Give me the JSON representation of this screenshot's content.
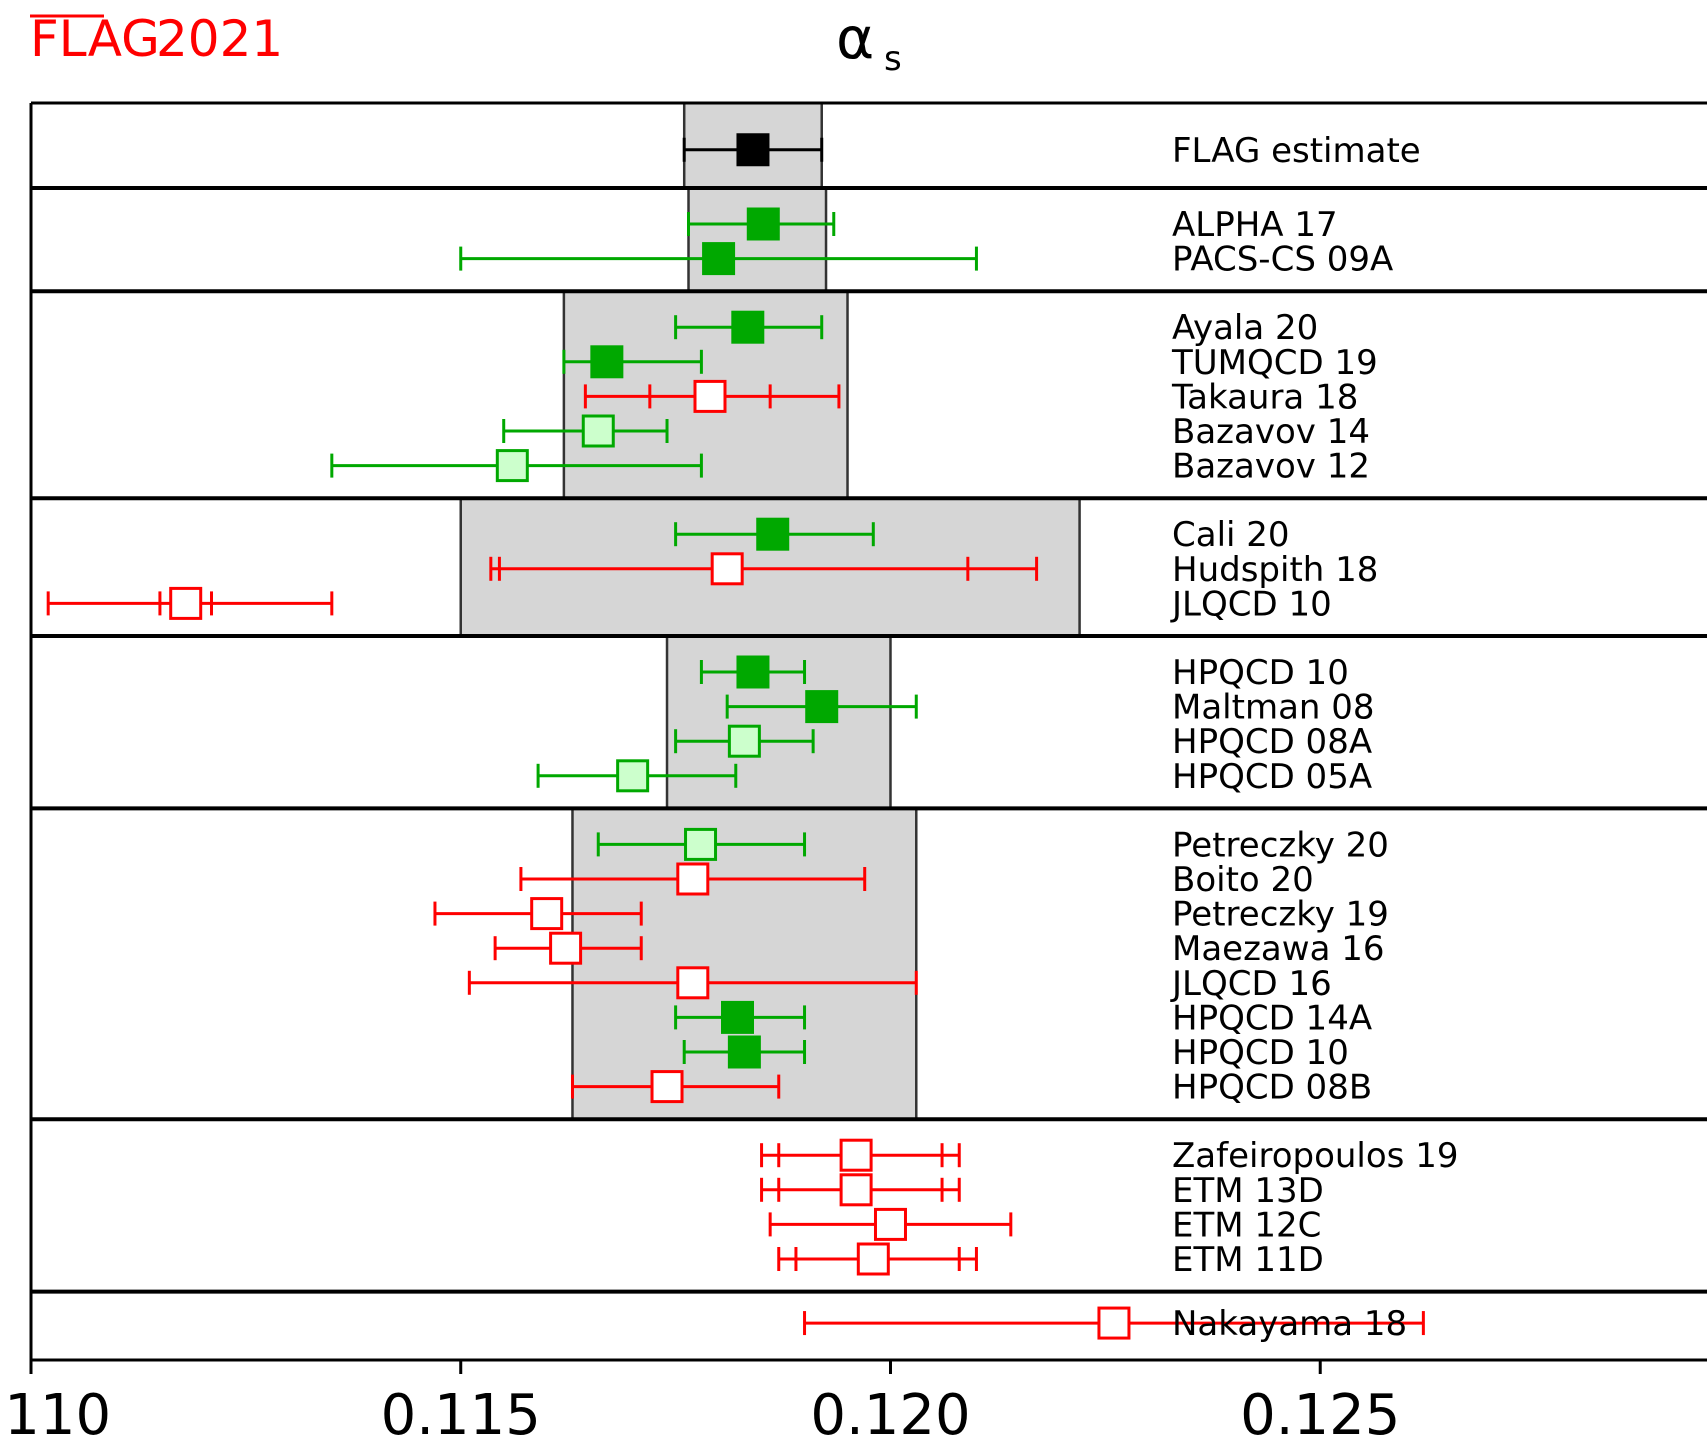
{
  "brand": {
    "name": "FLAG",
    "year": "2021",
    "color": "#ff0000"
  },
  "chart_data": {
    "type": "scatter",
    "title": "α",
    "title_subscript": "s",
    "xlim": [
      0.11,
      0.1295
    ],
    "xticks": [
      {
        "value": 0.11,
        "label": "0.110"
      },
      {
        "value": 0.115,
        "label": "0.115"
      },
      {
        "value": 0.12,
        "label": "0.120"
      },
      {
        "value": 0.125,
        "label": "0.125"
      }
    ],
    "colors": {
      "green": "#00a800",
      "red": "#ff0000",
      "light_green": "#ccffcc",
      "black": "#000000",
      "band": "#d6d6d6"
    },
    "groups": [
      {
        "band": [
          0.1176,
          0.1192
        ],
        "points": [
          {
            "label": "FLAG estimate",
            "value": 0.1184,
            "err": [
              0.1176,
              0.1192
            ],
            "color": "black",
            "marker": "filled"
          }
        ]
      },
      {
        "band": [
          0.11765,
          0.11925
        ],
        "points": [
          {
            "label": "ALPHA 17",
            "value": 0.11852,
            "err": [
              0.11765,
              0.11934
            ],
            "color": "green",
            "marker": "filled"
          },
          {
            "label": "PACS-CS 09A",
            "value": 0.118,
            "err": [
              0.115,
              0.121
            ],
            "color": "green",
            "marker": "filled"
          }
        ]
      },
      {
        "band": [
          0.1162,
          0.1195
        ],
        "points": [
          {
            "label": "Ayala 20",
            "value": 0.11834,
            "err": [
              0.1175,
              0.1192
            ],
            "color": "green",
            "marker": "filled"
          },
          {
            "label": "TUMQCD 19",
            "value": 0.1167,
            "err": [
              0.1162,
              0.1178
            ],
            "color": "green",
            "marker": "filled"
          },
          {
            "label": "Takaura 18",
            "value": 0.1179,
            "err": [
              0.11645,
              0.1194
            ],
            "inner_err": [
              0.1172,
              0.1186
            ],
            "color": "red",
            "marker": "open"
          },
          {
            "label": "Bazavov 14",
            "value": 0.1166,
            "err": [
              0.1155,
              0.1174
            ],
            "color": "green",
            "marker": "light"
          },
          {
            "label": "Bazavov 12",
            "value": 0.1156,
            "err": [
              0.1135,
              0.1178
            ],
            "color": "green",
            "marker": "light"
          }
        ]
      },
      {
        "band": [
          0.115,
          0.1222
        ],
        "points": [
          {
            "label": "Cali 20",
            "value": 0.11863,
            "err": [
              0.1175,
              0.1198
            ],
            "color": "green",
            "marker": "filled"
          },
          {
            "label": "Hudspith 18",
            "value": 0.1181,
            "err": [
              0.11535,
              0.1217
            ],
            "inner_err": [
              0.11545,
              0.1209
            ],
            "color": "red",
            "marker": "open"
          },
          {
            "label": "JLQCD 10",
            "value": 0.1118,
            "err": [
              0.1102,
              0.1135
            ],
            "inner_err": [
              0.1115,
              0.1121
            ],
            "color": "red",
            "marker": "open"
          }
        ]
      },
      {
        "band": [
          0.1174,
          0.12
        ],
        "points": [
          {
            "label": "HPQCD 10",
            "value": 0.1184,
            "err": [
              0.1178,
              0.119
            ],
            "color": "green",
            "marker": "filled"
          },
          {
            "label": "Maltman 08",
            "value": 0.1192,
            "err": [
              0.1181,
              0.1203
            ],
            "color": "green",
            "marker": "filled"
          },
          {
            "label": "HPQCD 08A",
            "value": 0.1183,
            "err": [
              0.1175,
              0.1191
            ],
            "color": "green",
            "marker": "light"
          },
          {
            "label": "HPQCD 05A",
            "value": 0.117,
            "err": [
              0.1159,
              0.1182
            ],
            "color": "green",
            "marker": "light"
          }
        ]
      },
      {
        "band": [
          0.1163,
          0.1203
        ],
        "points": [
          {
            "label": "Petreczky 20",
            "value": 0.11779,
            "err": [
              0.1166,
              0.119
            ],
            "color": "green",
            "marker": "light"
          },
          {
            "label": "Boito 20",
            "value": 0.1177,
            "err": [
              0.1157,
              0.1197
            ],
            "color": "red",
            "marker": "open"
          },
          {
            "label": "Petreczky 19",
            "value": 0.116,
            "err": [
              0.1147,
              0.1171
            ],
            "color": "red",
            "marker": "open"
          },
          {
            "label": "Maezawa 16",
            "value": 0.11622,
            "err": [
              0.1154,
              0.1171
            ],
            "color": "red",
            "marker": "open"
          },
          {
            "label": "JLQCD 16",
            "value": 0.1177,
            "err": [
              0.1151,
              0.1203
            ],
            "color": "red",
            "marker": "open"
          },
          {
            "label": "HPQCD 14A",
            "value": 0.11822,
            "err": [
              0.1175,
              0.119
            ],
            "color": "green",
            "marker": "filled"
          },
          {
            "label": "HPQCD 10",
            "value": 0.1183,
            "err": [
              0.1176,
              0.119
            ],
            "color": "green",
            "marker": "filled"
          },
          {
            "label": "HPQCD 08B",
            "value": 0.1174,
            "err": [
              0.1163,
              0.1187
            ],
            "color": "red",
            "marker": "open"
          }
        ]
      },
      {
        "band": null,
        "points": [
          {
            "label": "Zafeiropoulos 19",
            "value": 0.1196,
            "err": [
              0.1185,
              0.1208
            ],
            "inner_err": [
              0.1187,
              0.1206
            ],
            "color": "red",
            "marker": "open"
          },
          {
            "label": "ETM 13D",
            "value": 0.1196,
            "err": [
              0.1185,
              0.1208
            ],
            "inner_err": [
              0.1187,
              0.1206
            ],
            "color": "red",
            "marker": "open"
          },
          {
            "label": "ETM 12C",
            "value": 0.12,
            "err": [
              0.1186,
              0.1214
            ],
            "color": "red",
            "marker": "open"
          },
          {
            "label": "ETM 11D",
            "value": 0.1198,
            "err": [
              0.1187,
              0.121
            ],
            "inner_err": [
              0.1189,
              0.1208
            ],
            "color": "red",
            "marker": "open"
          }
        ]
      },
      {
        "band": null,
        "points": [
          {
            "label": "Nakayama 18",
            "value": 0.1226,
            "err": [
              0.119,
              0.1262
            ],
            "color": "red",
            "marker": "open"
          }
        ]
      }
    ]
  }
}
